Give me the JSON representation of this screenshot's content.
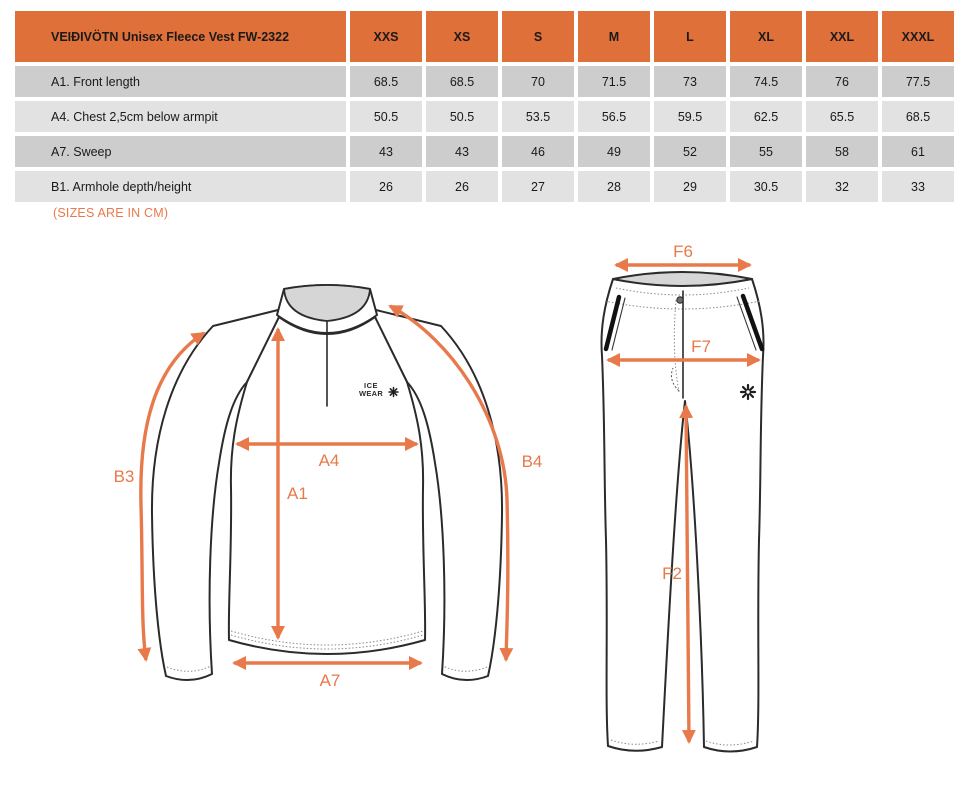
{
  "table": {
    "title": "VEIÐIVÖTN Unisex Fleece Vest FW-2322",
    "size_columns": [
      "XXS",
      "XS",
      "S",
      "M",
      "L",
      "XL",
      "XXL",
      "XXXL"
    ],
    "rows": [
      {
        "label": "A1. Front length",
        "values": [
          "68.5",
          "68.5",
          "70",
          "71.5",
          "73",
          "74.5",
          "76",
          "77.5"
        ]
      },
      {
        "label": "A4. Chest 2,5cm below armpit",
        "values": [
          "50.5",
          "50.5",
          "53.5",
          "56.5",
          "59.5",
          "62.5",
          "65.5",
          "68.5"
        ]
      },
      {
        "label": "A7. Sweep",
        "values": [
          "43",
          "43",
          "46",
          "49",
          "52",
          "55",
          "58",
          "61"
        ]
      },
      {
        "label": "B1. Armhole depth/height",
        "values": [
          "26",
          "26",
          "27",
          "28",
          "29",
          "30.5",
          "32",
          "33"
        ]
      }
    ]
  },
  "note": "(SIZES ARE IN CM)",
  "units": "cm",
  "fleece": {
    "logo_line1": "ICE",
    "logo_line2": "WEAR",
    "labels": {
      "b3": "B3",
      "a4": "A4",
      "a1": "A1",
      "b4": "B4",
      "a7": "A7"
    }
  },
  "pants": {
    "labels": {
      "f6": "F6",
      "f7": "F7",
      "f2": "F2"
    }
  },
  "colors": {
    "header_orange": "#E0703A",
    "accent_orange": "#E8794A",
    "row_dark": "#CDCDCD",
    "row_light": "#E2E2E2",
    "garment_line": "#2B2B2B",
    "collar_fill": "#D6D6D6"
  }
}
